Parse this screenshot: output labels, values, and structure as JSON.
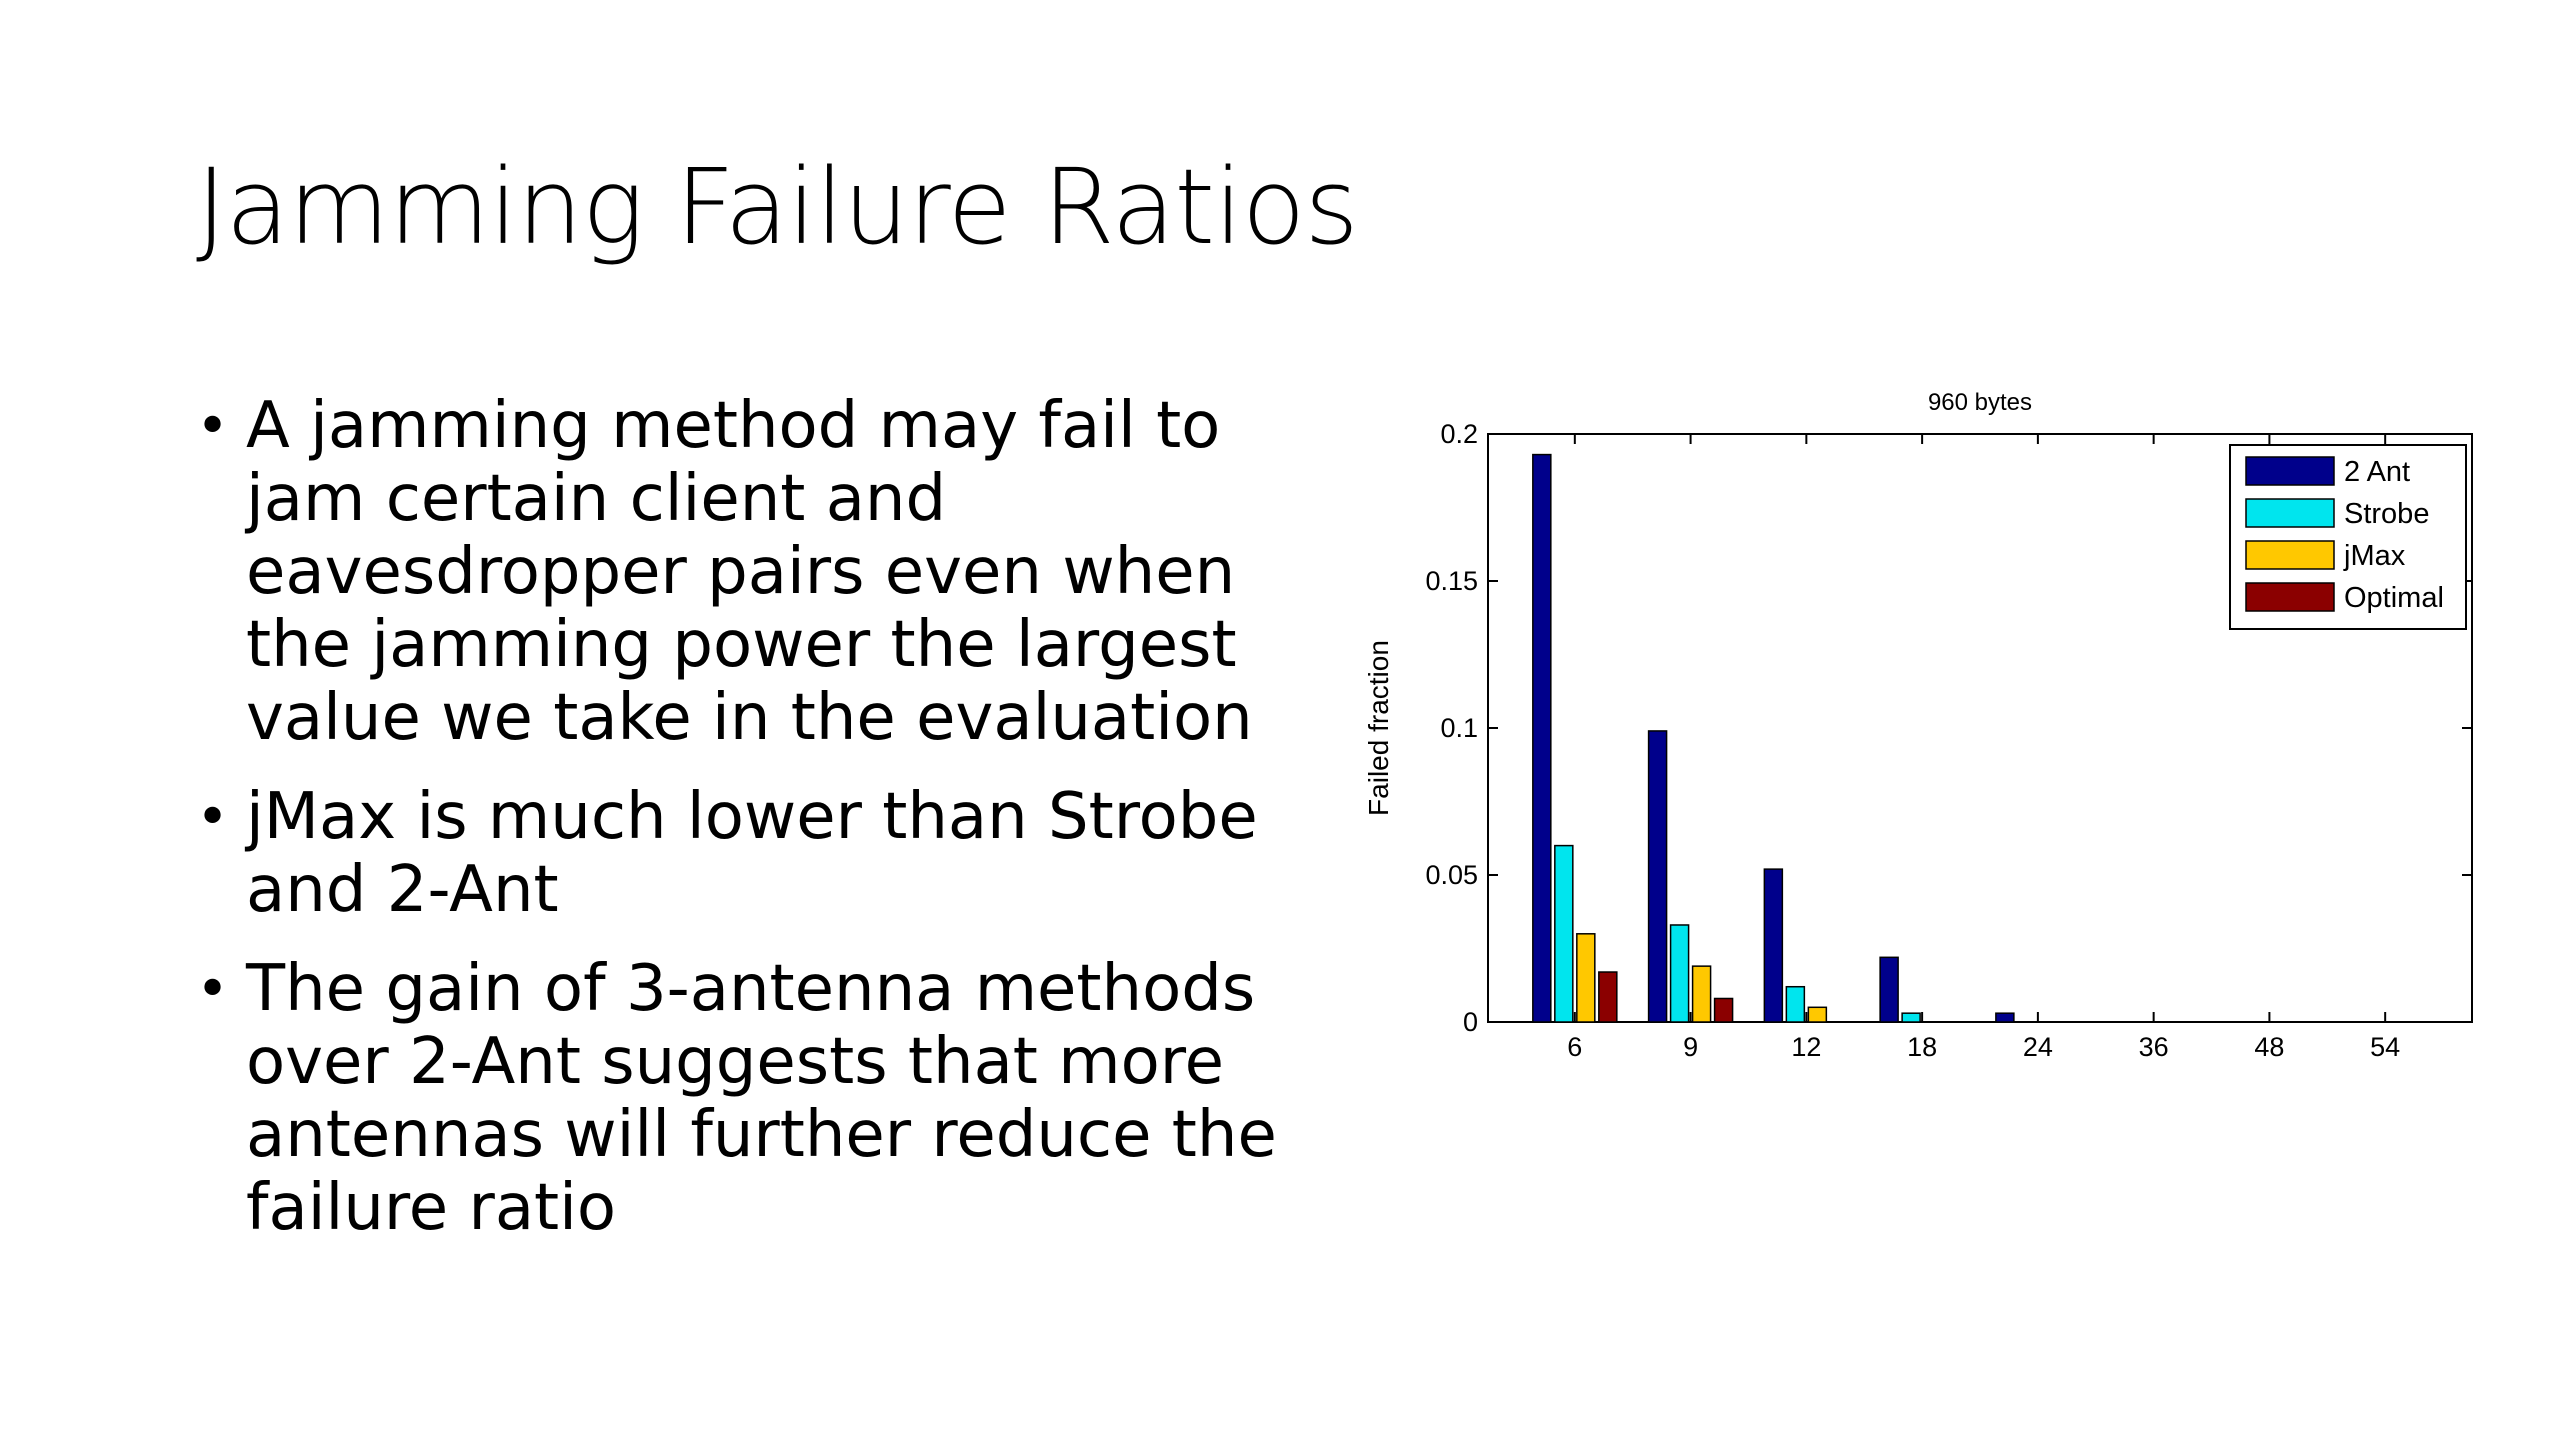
{
  "slide": {
    "title": "Jamming Failure Ratios",
    "bullets": [
      "A jamming method may fail to jam certain client and eavesdropper pairs even when the jamming power the largest value we take in the evaluation",
      "jMax is much lower than Strobe and 2-Ant",
      "The gain of 3-antenna methods over 2-Ant suggests that more antennas will further reduce the failure ratio"
    ]
  },
  "chart_data": {
    "type": "bar",
    "title": "960 bytes",
    "xlabel": "",
    "ylabel": "Failed fraction",
    "categories": [
      "6",
      "9",
      "12",
      "18",
      "24",
      "36",
      "48",
      "54"
    ],
    "ylim": [
      0,
      0.2
    ],
    "yticks": [
      0,
      0.05,
      0.1,
      0.15,
      0.2
    ],
    "ytick_labels": [
      "0",
      "0.05",
      "0.1",
      "0.15",
      "0.2"
    ],
    "legend_position": "top-right",
    "grid": false,
    "series": [
      {
        "name": "2 Ant",
        "color": "#00008B",
        "values": [
          0.193,
          0.099,
          0.052,
          0.022,
          0.003,
          0,
          0,
          0
        ]
      },
      {
        "name": "Strobe",
        "color": "#00E5EE",
        "values": [
          0.06,
          0.033,
          0.012,
          0.003,
          0,
          0,
          0,
          0
        ]
      },
      {
        "name": "jMax",
        "color": "#FFC800",
        "values": [
          0.03,
          0.019,
          0.005,
          0,
          0,
          0,
          0,
          0
        ]
      },
      {
        "name": "Optimal",
        "color": "#8B0000",
        "values": [
          0.017,
          0.008,
          0,
          0,
          0,
          0,
          0,
          0
        ]
      }
    ]
  }
}
